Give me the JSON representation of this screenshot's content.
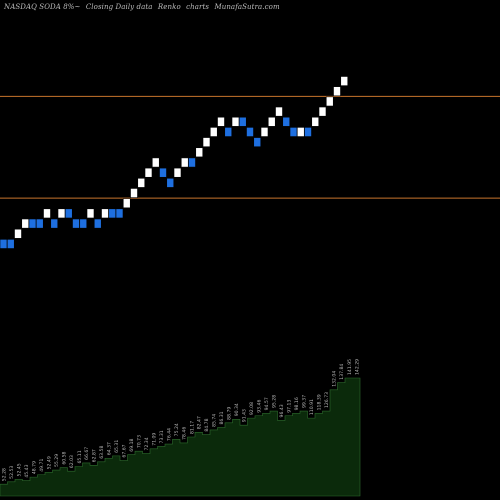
{
  "header": {
    "ticker": "NASDAQ SODA 8%~",
    "chart_kind": "Closing Daily data",
    "renko": "Renko",
    "charts_suffix": "charts",
    "source": "MunafaSutra.com"
  },
  "colors": {
    "background": "#000000",
    "up_brick": "#ffffff",
    "down_brick": "#1e6fe0",
    "ref_line": "#c8742c",
    "volume_fill": "#0b2a0b",
    "volume_stroke": "#2d6b2d"
  },
  "chart_data": [
    {
      "type": "renko",
      "title": "NASDAQ SODA 8%~ Closing Daily data Renko charts MunafaSutra.com",
      "ylim": [
        0,
        28
      ],
      "reference_lines": [
        20.5,
        10.5
      ],
      "bricks": [
        {
          "level": 6,
          "dir": "down"
        },
        {
          "level": 6,
          "dir": "down"
        },
        {
          "level": 7,
          "dir": "up"
        },
        {
          "level": 8,
          "dir": "up"
        },
        {
          "level": 8,
          "dir": "down"
        },
        {
          "level": 8,
          "dir": "down"
        },
        {
          "level": 9,
          "dir": "up"
        },
        {
          "level": 8,
          "dir": "down"
        },
        {
          "level": 9,
          "dir": "up"
        },
        {
          "level": 9,
          "dir": "down"
        },
        {
          "level": 8,
          "dir": "down"
        },
        {
          "level": 8,
          "dir": "down"
        },
        {
          "level": 9,
          "dir": "up"
        },
        {
          "level": 8,
          "dir": "down"
        },
        {
          "level": 9,
          "dir": "up"
        },
        {
          "level": 9,
          "dir": "down"
        },
        {
          "level": 9,
          "dir": "down"
        },
        {
          "level": 10,
          "dir": "up"
        },
        {
          "level": 11,
          "dir": "up"
        },
        {
          "level": 12,
          "dir": "up"
        },
        {
          "level": 13,
          "dir": "up"
        },
        {
          "level": 14,
          "dir": "up"
        },
        {
          "level": 13,
          "dir": "down"
        },
        {
          "level": 12,
          "dir": "down"
        },
        {
          "level": 13,
          "dir": "up"
        },
        {
          "level": 14,
          "dir": "up"
        },
        {
          "level": 14,
          "dir": "down"
        },
        {
          "level": 15,
          "dir": "up"
        },
        {
          "level": 16,
          "dir": "up"
        },
        {
          "level": 17,
          "dir": "up"
        },
        {
          "level": 18,
          "dir": "up"
        },
        {
          "level": 17,
          "dir": "down"
        },
        {
          "level": 18,
          "dir": "up"
        },
        {
          "level": 18,
          "dir": "down"
        },
        {
          "level": 17,
          "dir": "down"
        },
        {
          "level": 16,
          "dir": "down"
        },
        {
          "level": 17,
          "dir": "up"
        },
        {
          "level": 18,
          "dir": "up"
        },
        {
          "level": 19,
          "dir": "up"
        },
        {
          "level": 18,
          "dir": "down"
        },
        {
          "level": 17,
          "dir": "down"
        },
        {
          "level": 17,
          "dir": "up"
        },
        {
          "level": 17,
          "dir": "down"
        },
        {
          "level": 18,
          "dir": "up"
        },
        {
          "level": 19,
          "dir": "up"
        },
        {
          "level": 20,
          "dir": "up"
        },
        {
          "level": 21,
          "dir": "up"
        },
        {
          "level": 22,
          "dir": "up"
        }
      ]
    },
    {
      "type": "area",
      "series_name": "volume",
      "ylim": [
        0,
        100
      ],
      "values": [
        10,
        12,
        14,
        13,
        16,
        18,
        20,
        22,
        24,
        21,
        25,
        28,
        26,
        29,
        32,
        34,
        30,
        35,
        38,
        36,
        40,
        42,
        44,
        48,
        45,
        50,
        54,
        52,
        56,
        58,
        62,
        65,
        60,
        66,
        68,
        70,
        72,
        64,
        68,
        70,
        72,
        66,
        70,
        72,
        90,
        96,
        100,
        100
      ],
      "labels": [
        "52.28",
        "52.53",
        "52.45",
        "45.43",
        "48.79",
        "49.71",
        "52.49",
        "55.29",
        "60.58",
        "62.03",
        "65.11",
        "66.67",
        "62.87",
        "63.58",
        "64.37",
        "65.31",
        "67.67",
        "69.18",
        "70.73",
        "72.34",
        "71.09",
        "73.31",
        "76.44",
        "75.24",
        "78.46",
        "81.17",
        "82.47",
        "84.78",
        "85.74",
        "86.31",
        "88.79",
        "90.34",
        "91.43",
        "92.08",
        "93.46",
        "94.57",
        "95.28",
        "96.43",
        "97.13",
        "98.16",
        "99.37",
        "110.91",
        "118.39",
        "126.73",
        "132.04",
        "137.84",
        "141.95",
        "142.29"
      ]
    }
  ]
}
